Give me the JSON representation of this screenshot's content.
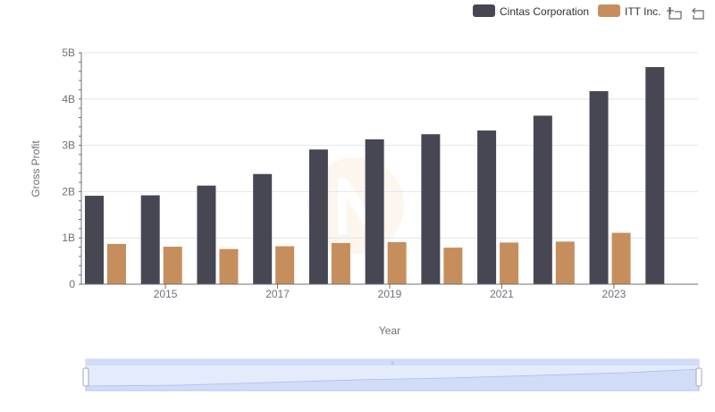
{
  "chart_data": {
    "type": "bar",
    "title": "",
    "xlabel": "Year",
    "ylabel": "Gross Profit",
    "x": [
      2014,
      2015,
      2016,
      2017,
      2018,
      2019,
      2020,
      2021,
      2022,
      2023,
      2024
    ],
    "x_tick_labels": [
      "2015",
      "2017",
      "2019",
      "2021",
      "2023"
    ],
    "y_tick_labels": [
      "0",
      "1B",
      "2B",
      "3B",
      "4B",
      "5B"
    ],
    "ylim": [
      0,
      5000000000
    ],
    "grid": true,
    "legend_position": "top-right",
    "series": [
      {
        "name": "Cintas Corporation",
        "color": "#474754",
        "values": [
          1910000000,
          1920000000,
          2130000000,
          2380000000,
          2910000000,
          3130000000,
          3240000000,
          3320000000,
          3640000000,
          4170000000,
          4690000000
        ]
      },
      {
        "name": "ITT Inc.",
        "color": "#c68e5d",
        "values": [
          870000000,
          810000000,
          760000000,
          820000000,
          890000000,
          910000000,
          790000000,
          900000000,
          920000000,
          1110000000,
          null
        ]
      }
    ]
  },
  "toolbox": {
    "zoom_icon": "zoom-icon",
    "restore_icon": "restore-icon"
  },
  "colors": {
    "grid": "#e0e6f1",
    "axis": "#6e7079",
    "slider_fill": "#e4ebfb",
    "slider_border": "#c5d2ee",
    "slider_area": "#d1dcf7"
  }
}
